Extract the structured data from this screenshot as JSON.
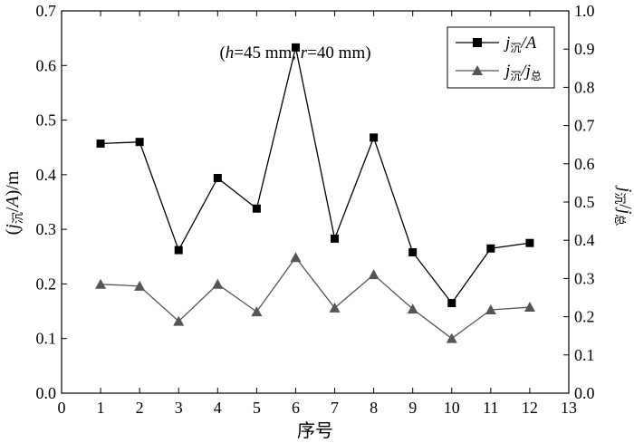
{
  "chart_data": {
    "type": "line",
    "title": "",
    "annotation": "(h=45 mm, r=40 mm)",
    "xlabel": "序号",
    "ylabel_left": "(j沉/A)/m",
    "ylabel_right": "j沉/j总",
    "xlim": [
      0,
      13
    ],
    "ylim_left": [
      0.0,
      0.7
    ],
    "ylim_right": [
      0.0,
      1.0
    ],
    "x_ticks": [
      "0",
      "1",
      "2",
      "3",
      "4",
      "5",
      "6",
      "7",
      "8",
      "9",
      "10",
      "11",
      "12",
      "13"
    ],
    "y_left_ticks": [
      "0.0",
      "0.1",
      "0.2",
      "0.3",
      "0.4",
      "0.5",
      "0.6",
      "0.7"
    ],
    "y_right_ticks": [
      "0.0",
      "0.1",
      "0.2",
      "0.3",
      "0.4",
      "0.5",
      "0.6",
      "0.7",
      "0.8",
      "0.9",
      "1.0"
    ],
    "x": [
      1,
      2,
      3,
      4,
      5,
      6,
      7,
      8,
      9,
      10,
      11,
      12
    ],
    "series": [
      {
        "name": "j沉/A",
        "axis": "left",
        "marker": "square",
        "color": "#000000",
        "values": [
          0.457,
          0.46,
          0.262,
          0.394,
          0.338,
          0.633,
          0.283,
          0.468,
          0.258,
          0.165,
          0.265,
          0.275
        ]
      },
      {
        "name": "j沉/j总",
        "axis": "right",
        "marker": "triangle",
        "color": "#555555",
        "values": [
          0.285,
          0.28,
          0.188,
          0.285,
          0.213,
          0.355,
          0.223,
          0.31,
          0.22,
          0.143,
          0.218,
          0.225
        ]
      }
    ],
    "legend_position": "top-right",
    "grid": false
  }
}
